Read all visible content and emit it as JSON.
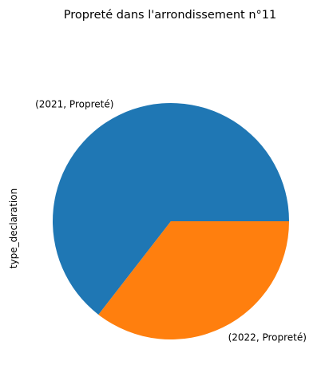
{
  "chart_data": {
    "type": "pie",
    "title": "Propreté dans l'arrondissement n°11",
    "ylabel": "type_declaration",
    "slices": [
      {
        "label": "(2021, Propreté)",
        "value": 64.5,
        "color": "#1f77b4"
      },
      {
        "label": "(2022, Propreté)",
        "value": 35.5,
        "color": "#ff7f0e"
      }
    ]
  }
}
